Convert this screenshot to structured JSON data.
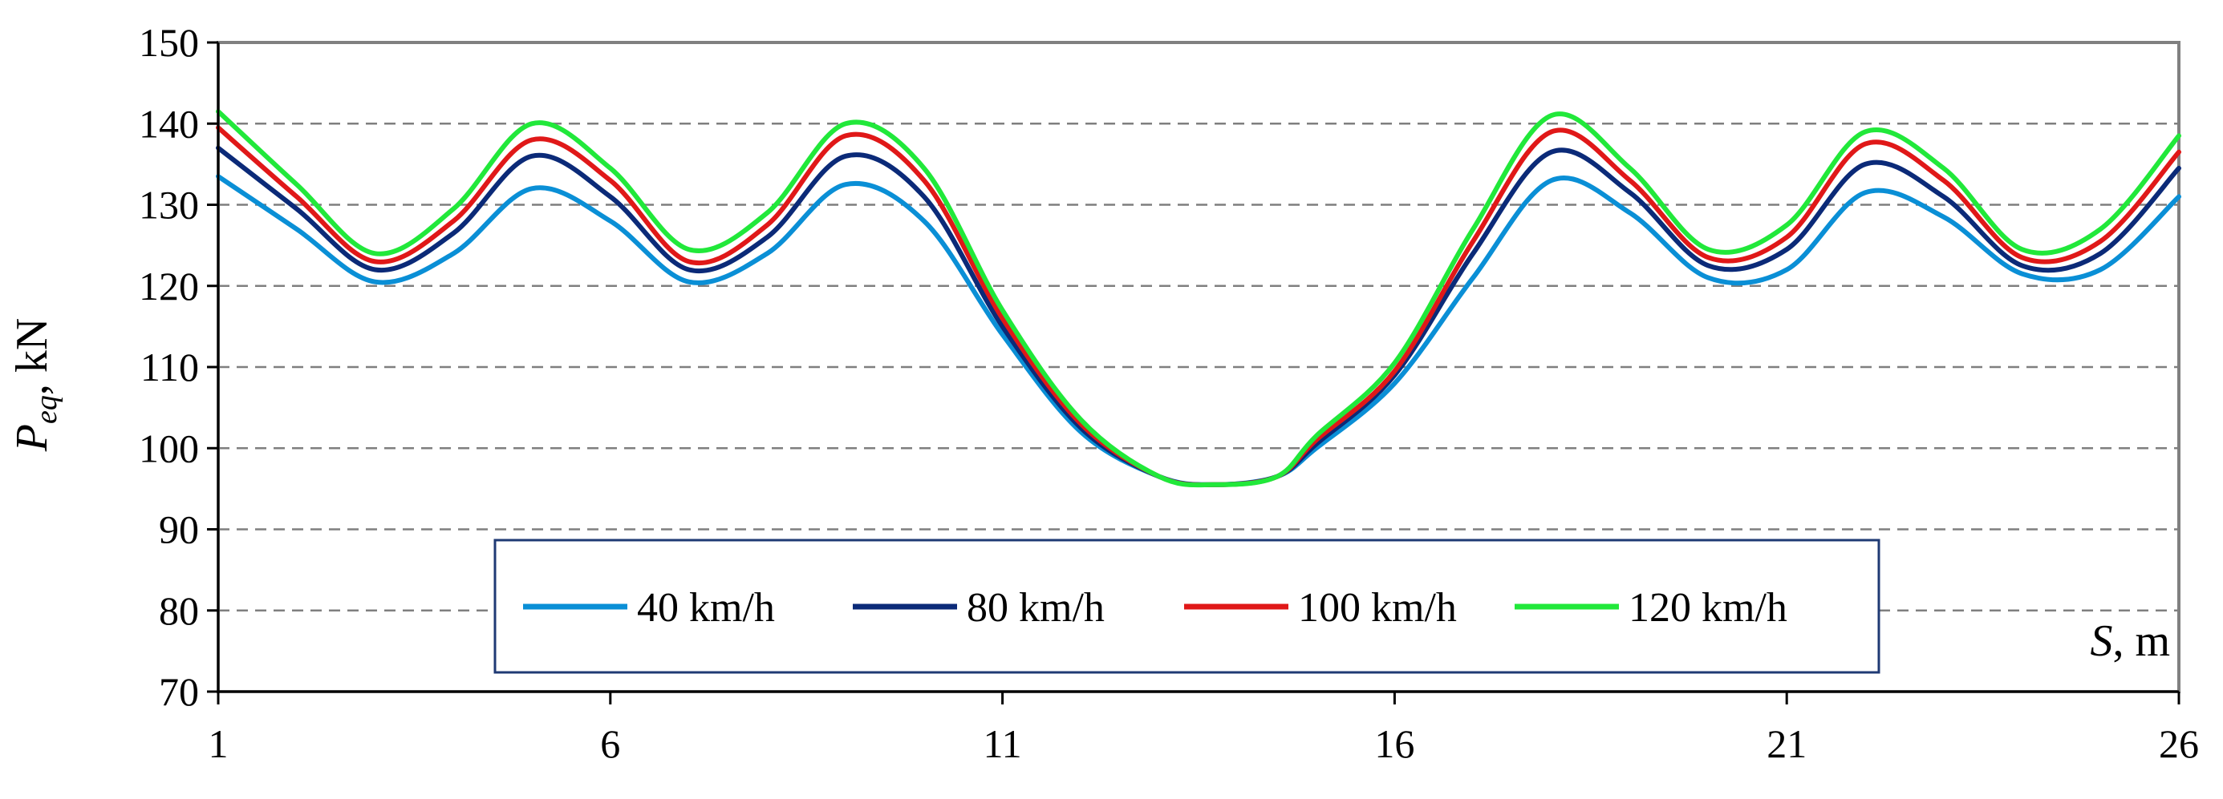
{
  "chart_data": {
    "type": "line",
    "title": "",
    "ylabel_main": "P",
    "ylabel_sub": "eq",
    "ylabel_unit": ", kN",
    "xlabel_var": "S",
    "xlabel_unit": ", m",
    "xlim": [
      1,
      26
    ],
    "ylim": [
      70,
      150
    ],
    "xticks": [
      1,
      6,
      11,
      16,
      21,
      26
    ],
    "yticks": [
      70,
      80,
      90,
      100,
      110,
      120,
      130,
      140,
      150
    ],
    "grid": "horizontal dashed",
    "legend_position": "bottom-center",
    "series": [
      {
        "name": "40 km/h",
        "color": "#0a8fd6",
        "x": [
          1,
          2,
          3,
          4,
          5,
          6,
          7,
          8,
          9,
          10,
          11,
          12,
          13,
          13.7,
          14.5,
          15,
          16,
          17,
          18,
          19,
          20,
          21,
          22,
          23,
          24,
          25,
          26
        ],
        "y": [
          133.5,
          127,
          120.5,
          124,
          132,
          128,
          120.5,
          124,
          132.5,
          128,
          114,
          102,
          96.5,
          95.5,
          96.5,
          100,
          108,
          121,
          133,
          129,
          121,
          122,
          131.5,
          128.5,
          121.5,
          122,
          131
        ]
      },
      {
        "name": "80 km/h",
        "color": "#0b2a78",
        "x": [
          1,
          2,
          3,
          4,
          5,
          6,
          7,
          8,
          9,
          10,
          11,
          12,
          13,
          13.7,
          14.5,
          15,
          16,
          17,
          18,
          19,
          20,
          21,
          22,
          23,
          24,
          25,
          26
        ],
        "y": [
          137,
          129.5,
          122,
          126.5,
          136,
          131,
          122,
          126,
          136,
          131,
          115,
          102.5,
          96.5,
          95.5,
          96.5,
          100.5,
          109,
          124,
          136.5,
          131.5,
          122.5,
          124.5,
          135,
          131,
          122.5,
          124,
          134.5
        ]
      },
      {
        "name": "100 km/h",
        "color": "#e01818",
        "x": [
          1,
          2,
          3,
          4,
          5,
          6,
          7,
          8,
          9,
          10,
          11,
          12,
          13,
          13.7,
          14.5,
          15,
          16,
          17,
          18,
          19,
          20,
          21,
          22,
          23,
          24,
          25,
          26
        ],
        "y": [
          139.5,
          131,
          123,
          128,
          138,
          133,
          123,
          127.5,
          138.5,
          133,
          116,
          103,
          96.5,
          95.5,
          96.5,
          101,
          109.5,
          125.5,
          139,
          133,
          123.5,
          126,
          137.5,
          133,
          123.5,
          125.5,
          136.5
        ]
      },
      {
        "name": "120 km/h",
        "color": "#21e83a",
        "x": [
          1,
          2,
          3,
          4,
          5,
          6,
          7,
          8,
          9,
          10,
          11,
          12,
          13,
          13.7,
          14.5,
          15,
          16,
          17,
          18,
          19,
          20,
          21,
          22,
          23,
          24,
          25,
          26
        ],
        "y": [
          141.5,
          132.5,
          124,
          129.5,
          140,
          134.5,
          124.5,
          129,
          140,
          134.5,
          117,
          103.5,
          96.5,
          95.5,
          96.5,
          101.5,
          110.5,
          127,
          141,
          134.5,
          124.5,
          127.5,
          139,
          134.5,
          124.5,
          127,
          138.5
        ]
      }
    ]
  }
}
